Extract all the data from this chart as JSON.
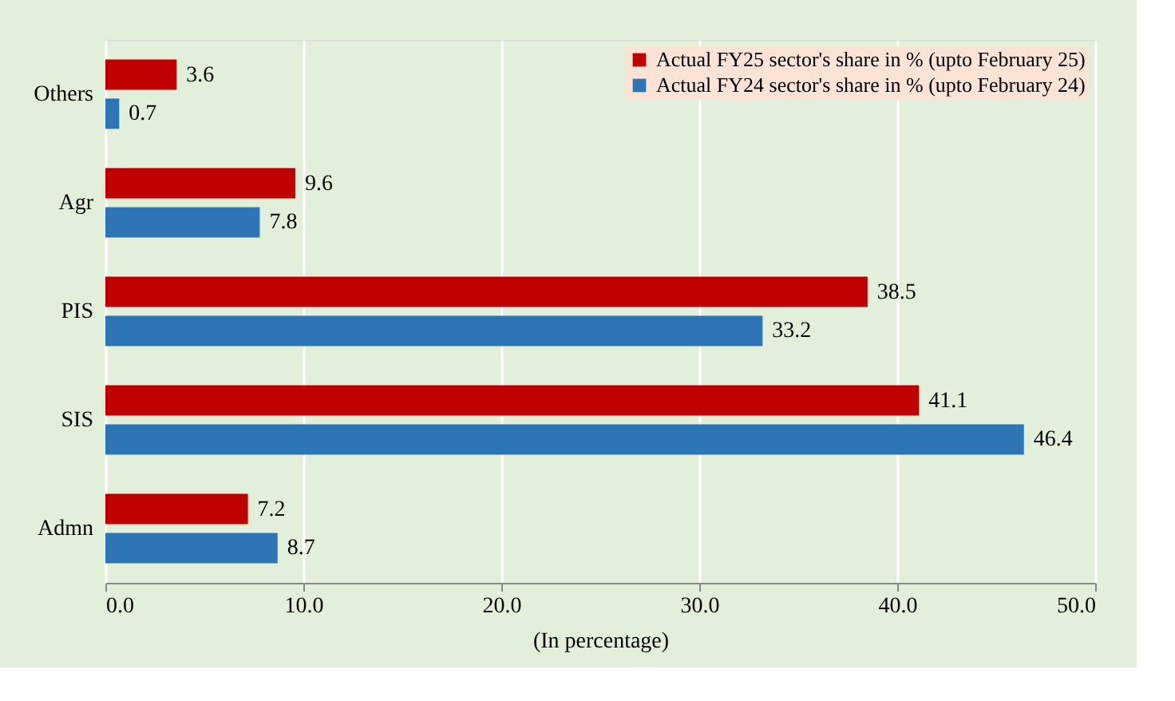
{
  "chart_data": {
    "type": "bar",
    "orientation": "horizontal",
    "xlabel": "(In percentage)",
    "categories": [
      "Others",
      "Agr",
      "PIS",
      "SIS",
      "Admn"
    ],
    "series": [
      {
        "name": "Actual FY25 sector's share in % (upto February 25)",
        "color": "#c00000",
        "values": [
          3.6,
          9.6,
          38.5,
          41.1,
          7.2
        ]
      },
      {
        "name": "Actual FY24 sector's share in % (upto February 24)",
        "color": "#2e75b6",
        "values": [
          0.7,
          7.8,
          33.2,
          46.4,
          8.7
        ]
      }
    ],
    "xlim": [
      0,
      50
    ],
    "xticks": [
      {
        "value": 0,
        "label": "0.0"
      },
      {
        "value": 10,
        "label": "10.0"
      },
      {
        "value": 20,
        "label": "20.0"
      },
      {
        "value": 30,
        "label": "30.0"
      },
      {
        "value": 40,
        "label": "40.0"
      },
      {
        "value": 50,
        "label": "50.0"
      }
    ],
    "grid": "x",
    "legend": "top right",
    "data_labels": true
  }
}
